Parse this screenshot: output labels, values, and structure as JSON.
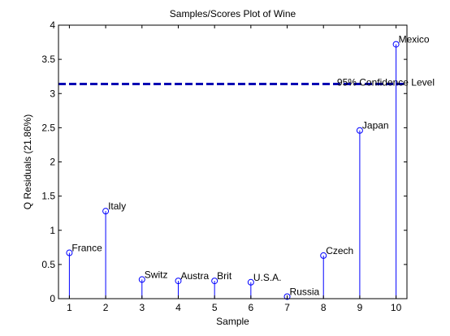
{
  "chart_data": {
    "type": "stem",
    "title": "Samples/Scores Plot of Wine",
    "xlabel": "Sample",
    "ylabel": "Q Residuals (21.86%)",
    "xlim": [
      0.7,
      10.3
    ],
    "ylim": [
      0,
      4
    ],
    "xticks": [
      1,
      2,
      3,
      4,
      5,
      6,
      7,
      8,
      9,
      10
    ],
    "yticks": [
      0,
      0.5,
      1,
      1.5,
      2,
      2.5,
      3,
      3.5,
      4
    ],
    "ytick_labels": [
      "0",
      "0.5",
      "1",
      "1.5",
      "2",
      "2.5",
      "3",
      "3.5",
      "4"
    ],
    "grid": false,
    "series": [
      {
        "x": [
          1,
          2,
          3,
          4,
          5,
          6,
          7,
          8,
          9,
          10
        ],
        "values": [
          0.67,
          1.28,
          0.28,
          0.26,
          0.26,
          0.24,
          0.03,
          0.63,
          2.46,
          3.72
        ],
        "labels": [
          "France",
          "Italy",
          "Switz",
          "Austra",
          "Brit",
          "U.S.A.",
          "Russia",
          "Czech",
          "Japan",
          "Mexico"
        ],
        "color": "#0000ff"
      }
    ],
    "reference_line": {
      "value": 3.14,
      "label": "95% Confidence Level",
      "color": "#0000b3",
      "style": "dashed"
    }
  }
}
